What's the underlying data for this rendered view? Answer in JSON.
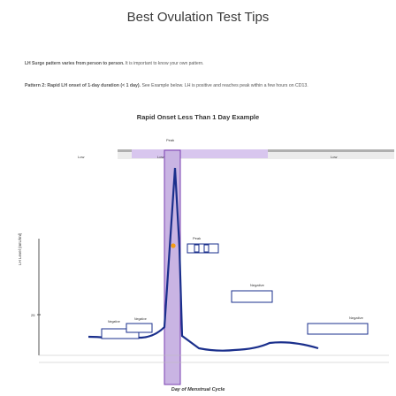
{
  "page": {
    "title": "Best Ovulation Test Tips",
    "paragraph1_bold": "LH Surge pattern varies from person to person.",
    "paragraph1_rest": " It is important to know your own pattern.",
    "paragraph2_bold": "Pattern 2: Rapid LH onset of 1-day duration (< 1 day).",
    "paragraph2_rest": " See Example below. LH is positive and reaches peak within a few hours on CD13."
  },
  "chart": {
    "title": "Rapid Onset Less Than 1 Day Example",
    "ylabel": "LH Level (mIU/ml)",
    "xlabel": "Day of Menstrual Cycle",
    "labels": {
      "peak": "Peak",
      "low": "Low",
      "negative": "Negative",
      "y_tick": "25"
    },
    "colors": {
      "curve": "#1a2f8c",
      "band": "#c9b4e3",
      "band_stroke": "#7a3fb0",
      "point": "#f39c12",
      "strip": "#b0b0b0"
    }
  }
}
